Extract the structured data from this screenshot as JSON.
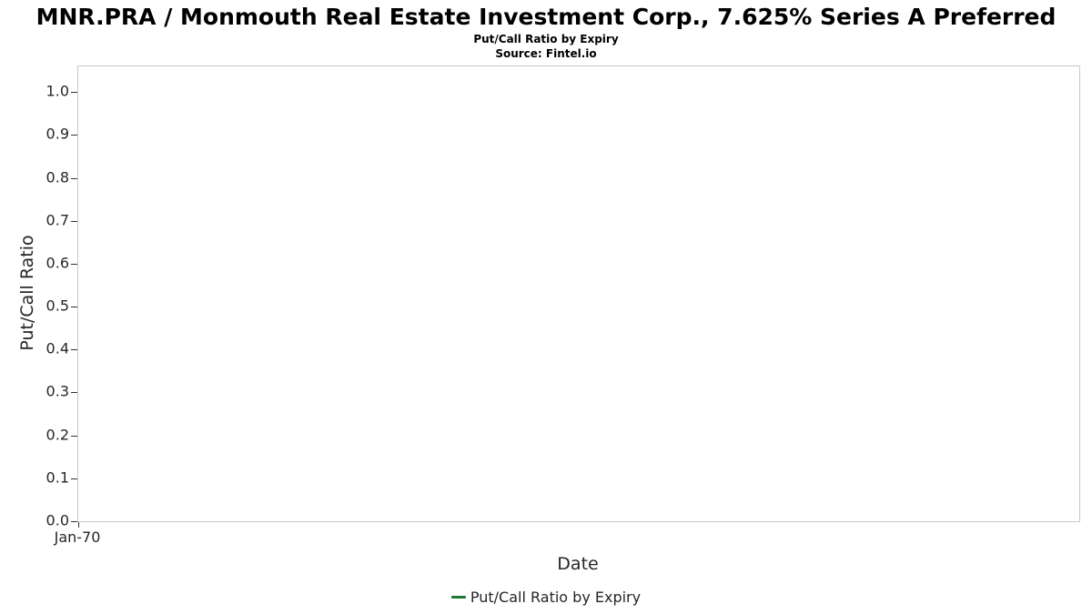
{
  "header": {
    "title": "MNR.PRA / Monmouth Real Estate Investment Corp., 7.625% Series A Preferred",
    "subtitle": "Put/Call Ratio by Expiry",
    "source": "Source: Fintel.io"
  },
  "chart_data": {
    "type": "line",
    "title": "MNR.PRA / Monmouth Real Estate Investment Corp., 7.625% Series A Preferred",
    "subtitle": "Put/Call Ratio by Expiry",
    "source": "Source: Fintel.io",
    "xlabel": "Date",
    "ylabel": "Put/Call Ratio",
    "ylim": [
      0.0,
      1.06
    ],
    "y_ticks": [
      0.0,
      0.1,
      0.2,
      0.3,
      0.4,
      0.5,
      0.6,
      0.7,
      0.8,
      0.9,
      1.0
    ],
    "x_ticks": [
      "Jan-70"
    ],
    "grid": false,
    "legend_position": "bottom",
    "series": [
      {
        "name": "Put/Call Ratio by Expiry",
        "color": "#1d7a36",
        "x": [],
        "values": []
      }
    ]
  }
}
